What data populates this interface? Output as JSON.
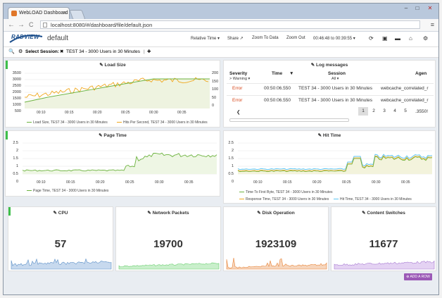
{
  "browser": {
    "tab_title": "WebLOAD Dashboard - d",
    "tab_close": "×",
    "url": "localhost:8080/#/dashboard/file/default.json",
    "back": "←",
    "forward": "→",
    "reload": "C",
    "menu": "≡",
    "minimize": "–",
    "maximize": "□",
    "close": "✕"
  },
  "header": {
    "logo": "RADVIEW",
    "dashboard_name": "default",
    "relative_time": "Relative Time ▾",
    "share": "Share ↗",
    "zoom_to_data": "Zoom To Data",
    "zoom_out": "Zoom Out",
    "time_range": "00:46:48 to 00:39:55 ▾",
    "icons": [
      "refresh-icon",
      "save-icon",
      "folder-icon",
      "home-icon",
      "gear-icon"
    ]
  },
  "session": {
    "search_icon": "🔍",
    "gear": "⚙",
    "label": "Select Session:",
    "remove": "✖",
    "value": "TEST 34 - 3000 Users in 30 Minutes",
    "add": "✚"
  },
  "colors": {
    "accent_green": "#3dbf4a",
    "line_green": "#6db33f",
    "line_orange": "#f0a81e",
    "line_blue": "#2f9fd8",
    "line_cyan": "#5bc5f2",
    "cpu_blue": "#5b8fc7",
    "network_green": "#6ccf72",
    "disk_orange": "#e8853a",
    "switch_purple": "#a77ad1",
    "error_red": "#d64417",
    "add_row_purple": "#9b59b6"
  },
  "load_size": {
    "title": "Load Size",
    "y_left": [
      "3500",
      "3000",
      "2500",
      "2000",
      "1500",
      "1000",
      "500"
    ],
    "y_right": [
      "200",
      "150",
      "100",
      "50",
      "0"
    ],
    "x_ticks": [
      "00:10",
      "00:15",
      "00:20",
      "00:25",
      "00:30",
      "00:35"
    ],
    "legend": [
      {
        "label": "Load Size, TEST 34 - 3000 Users in 30 Minutes",
        "color": "#6db33f"
      },
      {
        "label": "Hits Per Second, TEST 34 - 3000 Users in 30 Minutes",
        "color": "#f0a81e"
      }
    ]
  },
  "log_messages": {
    "title": "Log messages",
    "headers": [
      "Severity",
      "Time",
      "Session",
      "Agen"
    ],
    "filter_severity": "> Warning ▾",
    "filter_session": "All ▾",
    "rows": [
      {
        "severity": "Error",
        "time": "00:50:06.550",
        "session": "TEST 34 - 3000 Users in 30 Minutes",
        "agent": "webcache_correlated_r"
      },
      {
        "severity": "Error",
        "time": "00:50:06.550",
        "session": "TEST 34 - 3000 Users in 30 Minutes",
        "agent": "webcache_correlated_r"
      }
    ],
    "prev": "❮",
    "pages": [
      "1",
      "2",
      "3",
      "4",
      "5"
    ],
    "next": ".3550!"
  },
  "page_time": {
    "title": "Page Time",
    "y_ticks": [
      "2.5",
      "2",
      "1.5",
      "1",
      "0.5",
      "0"
    ],
    "x_ticks": [
      "00:10",
      "00:15",
      "00:20",
      "00:25",
      "00:30",
      "00:35"
    ],
    "legend": [
      {
        "label": "Page Time, TEST 34 - 3000 Users in 30 Minutes",
        "color": "#6db33f"
      }
    ]
  },
  "hit_time": {
    "title": "Hit Time",
    "y_ticks": [
      "2.5",
      "2",
      "1.5",
      "1",
      "0.5",
      "0"
    ],
    "x_ticks": [
      "00:10",
      "00:15",
      "00:20",
      "00:25",
      "00:30",
      "00:35"
    ],
    "legend": [
      {
        "label": "Time To First Byte, TEST 34 - 3000 Users in 30 Minutes",
        "color": "#6db33f"
      },
      {
        "label": "Response Time, TEST 34 - 3000 Users in 30 Minutes",
        "color": "#f0a81e"
      },
      {
        "label": "Hit Time, TEST 34 - 3000 Users in 30 Minutes",
        "color": "#5bc5f2"
      }
    ]
  },
  "stats": [
    {
      "title": "CPU",
      "value": "57"
    },
    {
      "title": "Network Packets",
      "value": "19700"
    },
    {
      "title": "Disk Operation",
      "value": "1923109"
    },
    {
      "title": "Content Switches",
      "value": "11677"
    }
  ],
  "add_row": "⊕ ADD A ROW"
}
